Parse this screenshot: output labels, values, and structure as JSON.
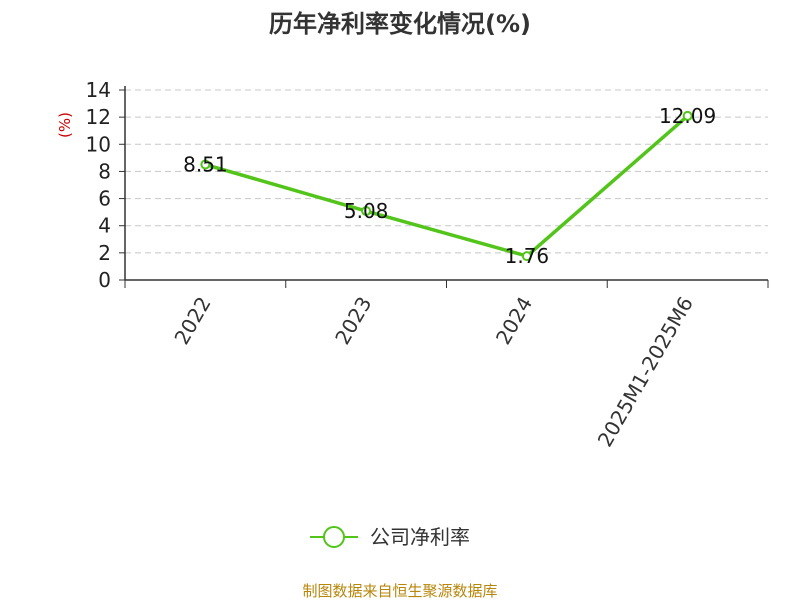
{
  "chart_data": {
    "type": "line",
    "title": "历年净利率变化情况(%)",
    "unit_label": "(%)",
    "categories": [
      "2022",
      "2023",
      "2024",
      "2025M1-2025M6"
    ],
    "series": [
      {
        "name": "公司净利率",
        "values": [
          8.51,
          5.08,
          1.76,
          12.09
        ],
        "color": "#52c41a"
      }
    ],
    "ylim": [
      0,
      14
    ],
    "yticks": [
      0,
      2,
      4,
      6,
      8,
      10,
      12,
      14
    ],
    "grid": true,
    "legend_position": "bottom"
  },
  "footer": {
    "source": "制图数据来自恒生聚源数据库"
  }
}
